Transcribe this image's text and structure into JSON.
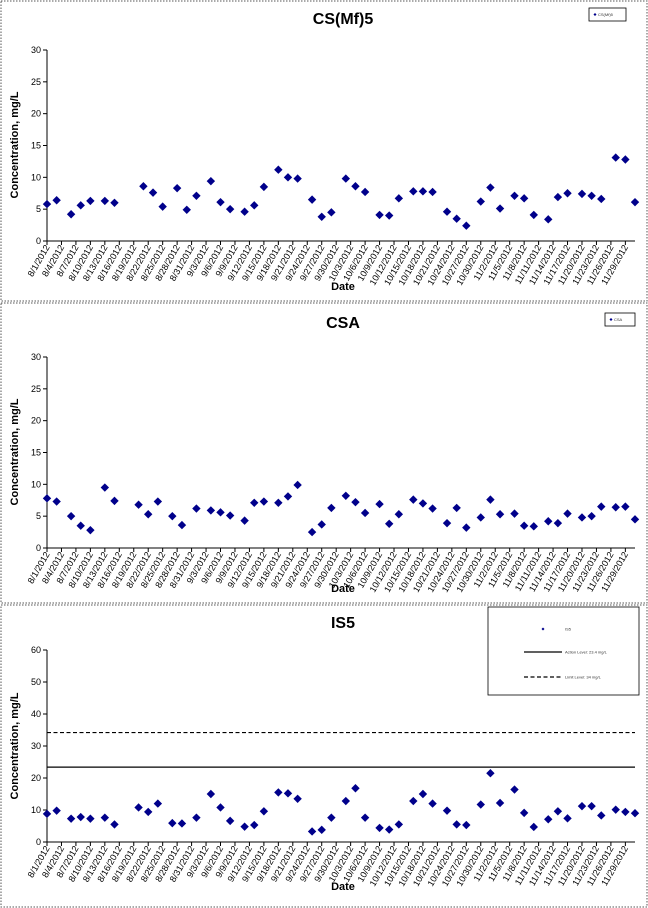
{
  "chart_data": [
    {
      "type": "scatter",
      "title": "CS(Mf)5",
      "xlabel": "Date",
      "ylabel": "Concentration, mg/L",
      "ylim": [
        0,
        30
      ],
      "yticks": [
        0,
        5,
        10,
        15,
        20,
        25,
        30
      ],
      "xlim": [
        "8/1/2012",
        "12/1/2012"
      ],
      "xticks": [
        "8/1/2012",
        "8/4/2012",
        "8/7/2012",
        "8/10/2012",
        "8/13/2012",
        "8/16/2012",
        "8/19/2012",
        "8/22/2012",
        "8/25/2012",
        "8/28/2012",
        "8/31/2012",
        "9/3/2012",
        "9/6/2012",
        "9/9/2012",
        "9/12/2012",
        "9/15/2012",
        "9/18/2012",
        "9/21/2012",
        "9/24/2012",
        "9/27/2012",
        "9/30/2012",
        "10/3/2012",
        "10/6/2012",
        "10/9/2012",
        "10/12/2012",
        "10/15/2012",
        "10/18/2012",
        "10/21/2012",
        "10/24/2012",
        "10/27/2012",
        "10/30/2012",
        "11/2/2012",
        "11/5/2012",
        "11/8/2012",
        "11/11/2012",
        "11/14/2012",
        "11/17/2012",
        "11/20/2012",
        "11/23/2012",
        "11/26/2012",
        "11/29/2012"
      ],
      "legend_position": "top-right",
      "series": [
        {
          "name": "CS(Mf)5",
          "color": "#00008b",
          "marker": "diamond",
          "x": [
            "8/1/2012",
            "8/3/2012",
            "8/6/2012",
            "8/8/2012",
            "8/10/2012",
            "8/13/2012",
            "8/15/2012",
            "8/21/2012",
            "8/23/2012",
            "8/25/2012",
            "8/28/2012",
            "8/30/2012",
            "9/1/2012",
            "9/4/2012",
            "9/6/2012",
            "9/8/2012",
            "9/11/2012",
            "9/13/2012",
            "9/15/2012",
            "9/18/2012",
            "9/20/2012",
            "9/22/2012",
            "9/25/2012",
            "9/27/2012",
            "9/29/2012",
            "10/2/2012",
            "10/4/2012",
            "10/6/2012",
            "10/9/2012",
            "10/11/2012",
            "10/13/2012",
            "10/16/2012",
            "10/18/2012",
            "10/20/2012",
            "10/23/2012",
            "10/25/2012",
            "10/27/2012",
            "10/30/2012",
            "11/1/2012",
            "11/3/2012",
            "11/6/2012",
            "11/8/2012",
            "11/10/2012",
            "11/13/2012",
            "11/15/2012",
            "11/17/2012",
            "11/20/2012",
            "11/22/2012",
            "11/24/2012",
            "11/27/2012",
            "11/29/2012",
            "12/1/2012"
          ],
          "y": [
            5.8,
            6.4,
            4.2,
            5.6,
            6.3,
            6.3,
            6.0,
            8.6,
            7.6,
            5.4,
            8.3,
            4.9,
            7.1,
            9.4,
            6.1,
            5.0,
            4.6,
            5.6,
            8.5,
            11.2,
            10.0,
            9.8,
            6.5,
            3.8,
            4.5,
            9.8,
            8.6,
            7.7,
            4.1,
            4.0,
            6.7,
            7.8,
            7.8,
            7.7,
            4.6,
            3.5,
            2.4,
            6.2,
            8.4,
            5.1,
            7.1,
            6.7,
            4.1,
            3.4,
            6.9,
            7.5,
            7.4,
            7.1,
            6.6,
            13.1,
            12.8,
            6.1
          ]
        }
      ]
    },
    {
      "type": "scatter",
      "title": "CSA",
      "xlabel": "Date",
      "ylabel": "Concentration, mg/L",
      "ylim": [
        0,
        30
      ],
      "yticks": [
        0,
        5,
        10,
        15,
        20,
        25,
        30
      ],
      "xlim": [
        "8/1/2012",
        "12/1/2012"
      ],
      "xticks": [
        "8/1/2012",
        "8/4/2012",
        "8/7/2012",
        "8/10/2012",
        "8/13/2012",
        "8/16/2012",
        "8/19/2012",
        "8/22/2012",
        "8/25/2012",
        "8/28/2012",
        "8/31/2012",
        "9/3/2012",
        "9/6/2012",
        "9/9/2012",
        "9/12/2012",
        "9/15/2012",
        "9/18/2012",
        "9/21/2012",
        "9/24/2012",
        "9/27/2012",
        "9/30/2012",
        "10/3/2012",
        "10/6/2012",
        "10/9/2012",
        "10/12/2012",
        "10/15/2012",
        "10/18/2012",
        "10/21/2012",
        "10/24/2012",
        "10/27/2012",
        "10/30/2012",
        "11/2/2012",
        "11/5/2012",
        "11/8/2012",
        "11/11/2012",
        "11/14/2012",
        "11/17/2012",
        "11/20/2012",
        "11/23/2012",
        "11/26/2012",
        "11/29/2012"
      ],
      "legend_position": "top-right",
      "series": [
        {
          "name": "CSA",
          "color": "#00008b",
          "marker": "diamond",
          "x": [
            "8/1/2012",
            "8/3/2012",
            "8/6/2012",
            "8/8/2012",
            "8/10/2012",
            "8/13/2012",
            "8/15/2012",
            "8/20/2012",
            "8/22/2012",
            "8/24/2012",
            "8/27/2012",
            "8/29/2012",
            "9/1/2012",
            "9/4/2012",
            "9/6/2012",
            "9/8/2012",
            "9/11/2012",
            "9/13/2012",
            "9/15/2012",
            "9/18/2012",
            "9/20/2012",
            "9/22/2012",
            "9/25/2012",
            "9/27/2012",
            "9/29/2012",
            "10/2/2012",
            "10/4/2012",
            "10/6/2012",
            "10/9/2012",
            "10/11/2012",
            "10/13/2012",
            "10/16/2012",
            "10/18/2012",
            "10/20/2012",
            "10/23/2012",
            "10/25/2012",
            "10/27/2012",
            "10/30/2012",
            "11/1/2012",
            "11/3/2012",
            "11/6/2012",
            "11/8/2012",
            "11/10/2012",
            "11/13/2012",
            "11/15/2012",
            "11/17/2012",
            "11/20/2012",
            "11/22/2012",
            "11/24/2012",
            "11/27/2012",
            "11/29/2012",
            "12/1/2012"
          ],
          "y": [
            7.8,
            7.3,
            5.0,
            3.5,
            2.8,
            9.5,
            7.4,
            6.8,
            5.3,
            7.3,
            5.0,
            3.6,
            6.2,
            5.9,
            5.6,
            5.1,
            4.3,
            7.1,
            7.3,
            7.1,
            8.1,
            9.9,
            2.5,
            3.7,
            6.3,
            8.2,
            7.2,
            5.5,
            6.9,
            3.8,
            5.3,
            7.6,
            7.0,
            6.2,
            3.9,
            6.3,
            3.2,
            4.8,
            7.6,
            5.3,
            5.4,
            3.5,
            3.4,
            4.2,
            3.9,
            5.4,
            4.8,
            5.0,
            6.5,
            6.4,
            6.5,
            4.5
          ]
        }
      ]
    },
    {
      "type": "scatter",
      "title": "IS5",
      "xlabel": "Date",
      "ylabel": "Concentration, mg/L",
      "ylim": [
        0,
        60
      ],
      "yticks": [
        0,
        10,
        20,
        30,
        40,
        50,
        60
      ],
      "xlim": [
        "8/1/2012",
        "12/1/2012"
      ],
      "xticks": [
        "8/1/2012",
        "8/4/2012",
        "8/7/2012",
        "8/10/2012",
        "8/13/2012",
        "8/16/2012",
        "8/19/2012",
        "8/22/2012",
        "8/25/2012",
        "8/28/2012",
        "8/31/2012",
        "9/3/2012",
        "9/6/2012",
        "9/9/2012",
        "9/12/2012",
        "9/15/2012",
        "9/18/2012",
        "9/21/2012",
        "9/24/2012",
        "9/27/2012",
        "9/30/2012",
        "10/3/2012",
        "10/6/2012",
        "10/9/2012",
        "10/12/2012",
        "10/15/2012",
        "10/18/2012",
        "10/21/2012",
        "10/24/2012",
        "10/27/2012",
        "10/30/2012",
        "11/2/2012",
        "11/5/2012",
        "11/8/2012",
        "11/11/2012",
        "11/14/2012",
        "11/17/2012",
        "11/20/2012",
        "11/23/2012",
        "11/26/2012",
        "11/29/2012"
      ],
      "legend_position": "top-right",
      "series": [
        {
          "name": "IS5",
          "color": "#00008b",
          "marker": "diamond",
          "x": [
            "8/1/2012",
            "8/3/2012",
            "8/6/2012",
            "8/8/2012",
            "8/10/2012",
            "8/13/2012",
            "8/15/2012",
            "8/20/2012",
            "8/22/2012",
            "8/24/2012",
            "8/27/2012",
            "8/29/2012",
            "9/1/2012",
            "9/4/2012",
            "9/6/2012",
            "9/8/2012",
            "9/11/2012",
            "9/13/2012",
            "9/15/2012",
            "9/18/2012",
            "9/20/2012",
            "9/22/2012",
            "9/25/2012",
            "9/27/2012",
            "9/29/2012",
            "10/2/2012",
            "10/4/2012",
            "10/6/2012",
            "10/9/2012",
            "10/11/2012",
            "10/13/2012",
            "10/16/2012",
            "10/18/2012",
            "10/20/2012",
            "10/23/2012",
            "10/25/2012",
            "10/27/2012",
            "10/30/2012",
            "11/1/2012",
            "11/3/2012",
            "11/6/2012",
            "11/8/2012",
            "11/10/2012",
            "11/13/2012",
            "11/15/2012",
            "11/17/2012",
            "11/20/2012",
            "11/22/2012",
            "11/24/2012",
            "11/27/2012",
            "11/29/2012",
            "12/1/2012"
          ],
          "y": [
            8.8,
            9.8,
            7.3,
            7.8,
            7.3,
            7.6,
            5.5,
            10.8,
            9.4,
            12.0,
            5.9,
            5.8,
            7.6,
            15.0,
            10.8,
            6.6,
            4.8,
            5.3,
            9.6,
            15.5,
            15.2,
            13.5,
            3.3,
            3.8,
            7.6,
            12.8,
            16.8,
            7.6,
            4.4,
            3.9,
            5.5,
            12.8,
            15.0,
            12.0,
            9.8,
            5.5,
            5.3,
            11.7,
            21.5,
            12.2,
            16.4,
            9.1,
            4.7,
            7.1,
            9.6,
            7.4,
            11.2,
            11.2,
            8.3,
            10.1,
            9.4,
            9.0
          ]
        },
        {
          "name": "Action Level: 23.4 mg/L",
          "type": "hline",
          "value": 23.4,
          "color": "#000000",
          "dash": "solid"
        },
        {
          "name": "Limit Level: 34 mg/L",
          "type": "hline",
          "value": 34.2,
          "color": "#000000",
          "dash": "dashed"
        }
      ]
    }
  ]
}
